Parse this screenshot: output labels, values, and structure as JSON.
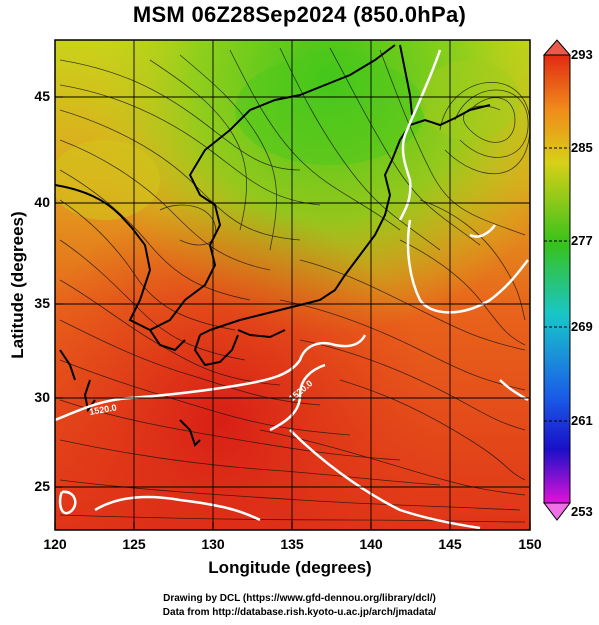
{
  "title": "MSM 06Z28Sep2024 (850.0hPa)",
  "xaxis": {
    "label": "Longitude (degrees)",
    "ticks": [
      "120",
      "125",
      "130",
      "135",
      "140",
      "145",
      "150"
    ]
  },
  "yaxis": {
    "label": "Latitude  (degrees)",
    "ticks": [
      "25",
      "30",
      "35",
      "40",
      "45"
    ]
  },
  "colorbar": {
    "ticks": [
      "293",
      "285",
      "277",
      "269",
      "261",
      "253"
    ]
  },
  "contour_labels": [
    "1520.0",
    "1520.0"
  ],
  "credits": {
    "line1": "Drawing by DCL (https://www.gfd-dennou.org/library/dcl/)",
    "line2": "Data from http://database.rish.kyoto-u.ac.jp/arch/jmadata/"
  },
  "colors": {
    "frame": "#000000",
    "contour": "#ffffff",
    "warm": "#e32a18",
    "cool": "#36c21a"
  }
}
